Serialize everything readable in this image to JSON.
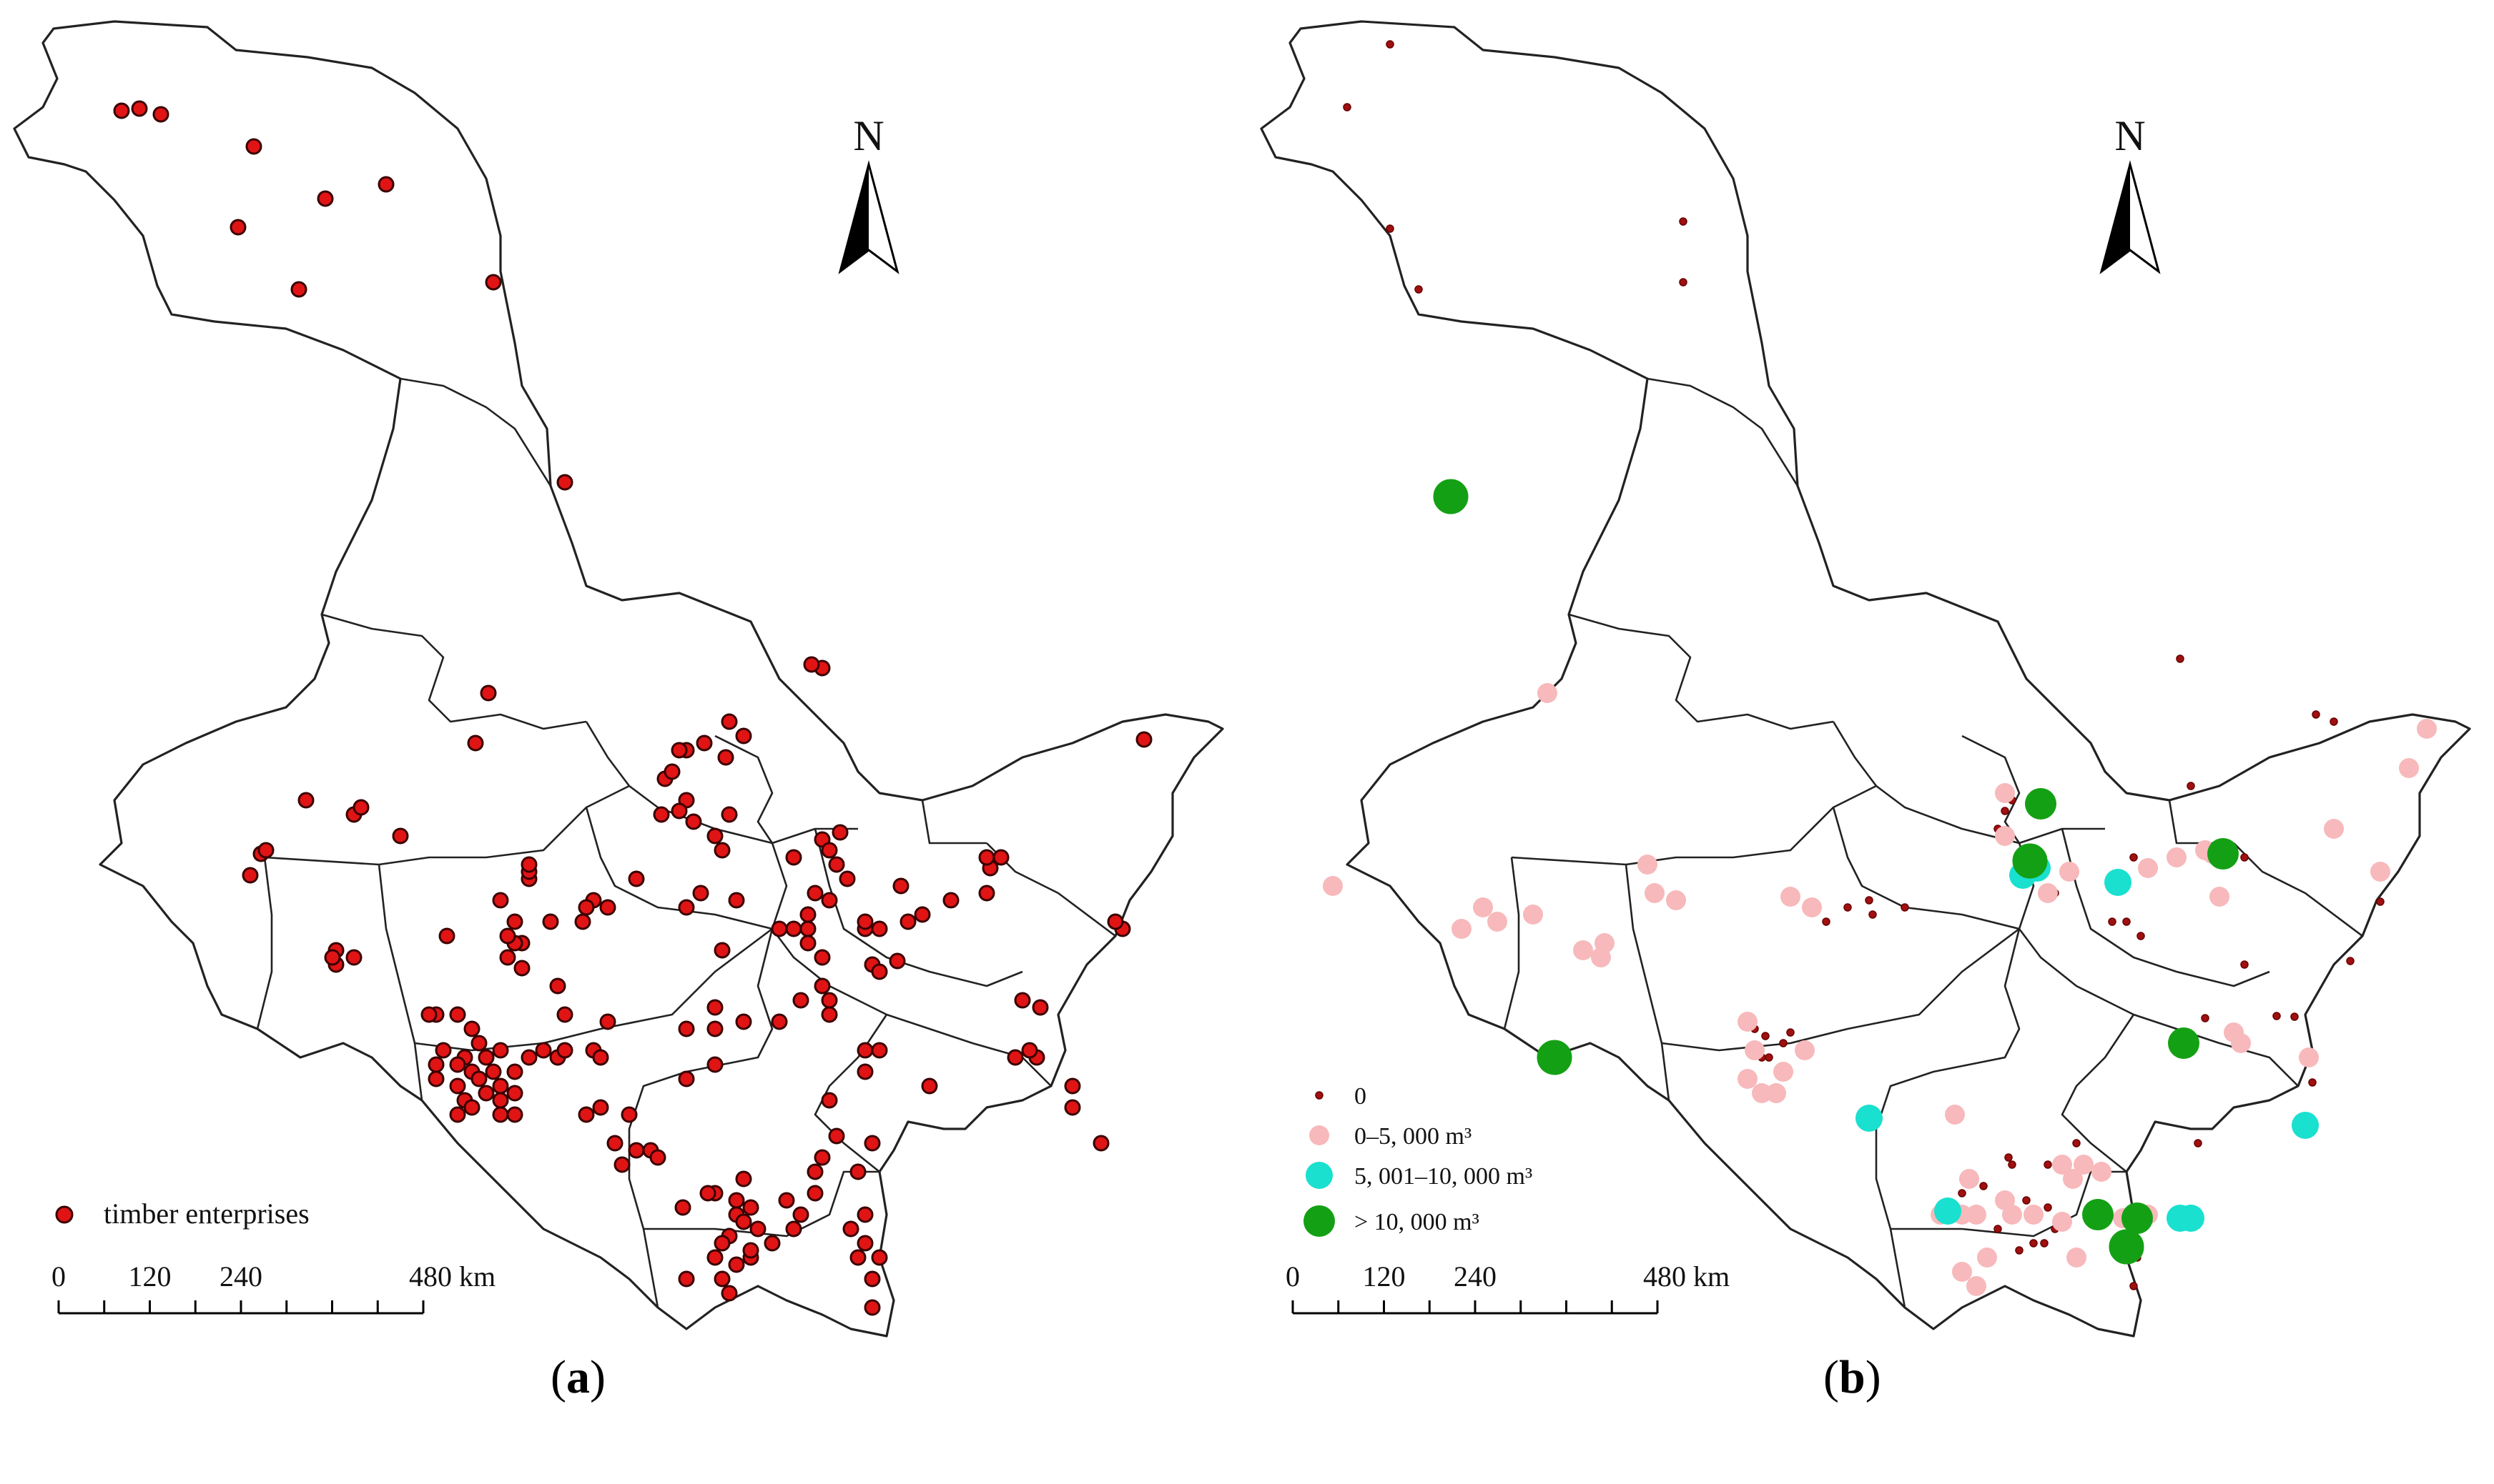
{
  "panels": [
    {
      "id": "a",
      "caption_open": "(",
      "caption_letter": "a",
      "caption_close": ")",
      "north_label": "N",
      "legend": [
        {
          "label": "timber enterprises",
          "color": "#e01414",
          "stroke": "#3a0000"
        }
      ],
      "scale": {
        "ticks": [
          "0",
          "120",
          "240",
          "480 km"
        ]
      }
    },
    {
      "id": "b",
      "caption_open": "(",
      "caption_letter": "b",
      "caption_close": ")",
      "north_label": "N",
      "legend": [
        {
          "label": "0",
          "color": "#a01010"
        },
        {
          "label": "0–5, 000 m³",
          "color": "#f7b9bb"
        },
        {
          "label": "5, 001–10, 000 m³",
          "color": "#19e0cf"
        },
        {
          "label": "> 10, 000 m³",
          "color": "#14a014"
        }
      ],
      "scale": {
        "ticks": [
          "0",
          "120",
          "240",
          "480 km"
        ]
      }
    }
  ]
}
